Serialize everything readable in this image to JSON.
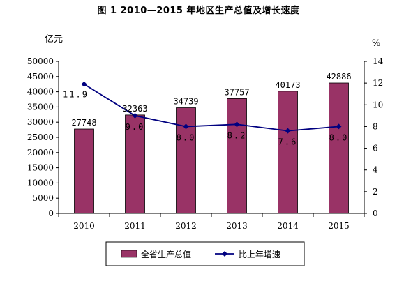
{
  "chart_title": "图 1    2010—2015 年地区生产总值及增长速度",
  "chart_data": {
    "type": "bar",
    "title": "图 1    2010—2015 年地区生产总值及增长速度",
    "categories": [
      "2010",
      "2011",
      "2012",
      "2013",
      "2014",
      "2015"
    ],
    "y_unit_left": "亿元",
    "y_unit_right": "%",
    "ylim": [
      0,
      50000
    ],
    "y2lim": [
      0,
      14
    ],
    "yticks": [
      "0",
      "5000",
      "10000",
      "15000",
      "20000",
      "25000",
      "30000",
      "35000",
      "40000",
      "45000",
      "50000"
    ],
    "y2ticks": [
      "0",
      "2",
      "4",
      "6",
      "8",
      "10",
      "12",
      "14"
    ],
    "legend_position": "bottom",
    "series": [
      {
        "name": "全省生产总值",
        "type": "bar",
        "axis": "left",
        "color": "#993366",
        "values": [
          27748,
          32363,
          34739,
          37757,
          40173,
          42886
        ],
        "labels": [
          "27748",
          "32363",
          "34739",
          "37757",
          "40173",
          "42886"
        ]
      },
      {
        "name": "比上年增速",
        "type": "line",
        "axis": "right",
        "color": "#000080",
        "marker": "diamond",
        "values": [
          11.9,
          9.0,
          8.0,
          8.2,
          7.6,
          8.0
        ],
        "labels": [
          "11.9",
          "9.0",
          "8.0",
          "8.2",
          "7.6",
          "8.0"
        ]
      }
    ]
  }
}
